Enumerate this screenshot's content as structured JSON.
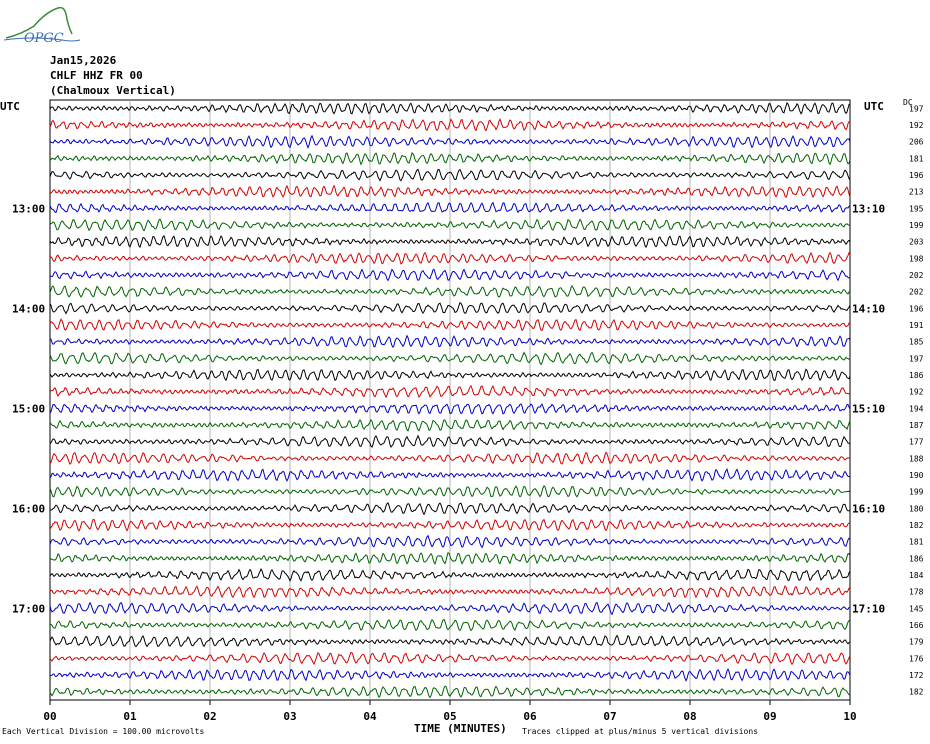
{
  "header": {
    "logo_text": "OPGC",
    "date": "Jan15,2026",
    "station": "CHLF HHZ FR 00",
    "location": "(Chalmoux Vertical)",
    "utc_left": "UTC",
    "utc_right": "UTC",
    "dc_label": "DC"
  },
  "colors": {
    "trace_cycle": [
      "#000000",
      "#d40000",
      "#0000c8",
      "#006400"
    ],
    "grid": "#a0a0a0"
  },
  "chart_data": {
    "type": "line",
    "xlabel": "TIME (MINUTES)",
    "x_ticks": [
      "00",
      "01",
      "02",
      "03",
      "04",
      "05",
      "06",
      "07",
      "08",
      "09",
      "10"
    ],
    "xlim": [
      0,
      10
    ],
    "left_time_labels": [
      {
        "row": 6,
        "label": "13:00"
      },
      {
        "row": 12,
        "label": "14:00"
      },
      {
        "row": 18,
        "label": "15:00"
      },
      {
        "row": 24,
        "label": "16:00"
      },
      {
        "row": 30,
        "label": "17:00"
      }
    ],
    "right_time_labels": [
      {
        "row": 6,
        "label": "13:10"
      },
      {
        "row": 12,
        "label": "14:10"
      },
      {
        "row": 18,
        "label": "15:10"
      },
      {
        "row": 24,
        "label": "16:10"
      },
      {
        "row": 30,
        "label": "17:10"
      }
    ],
    "dc_values": [
      "197",
      "192",
      "206",
      "181",
      "196",
      "213",
      "195",
      "199",
      "203",
      "198",
      "202",
      "202",
      "196",
      "191",
      "185",
      "197",
      "186",
      "192",
      "194",
      "187",
      "177",
      "188",
      "190",
      "199",
      "180",
      "182",
      "181",
      "186",
      "184",
      "178",
      "145",
      "166",
      "179",
      "176",
      "172",
      "182"
    ],
    "trace_count": 36,
    "grid": true,
    "footer_left": "Each Vertical Division =  100.00 microvolts",
    "footer_right": "Traces clipped at plus/minus 5 vertical divisions"
  }
}
